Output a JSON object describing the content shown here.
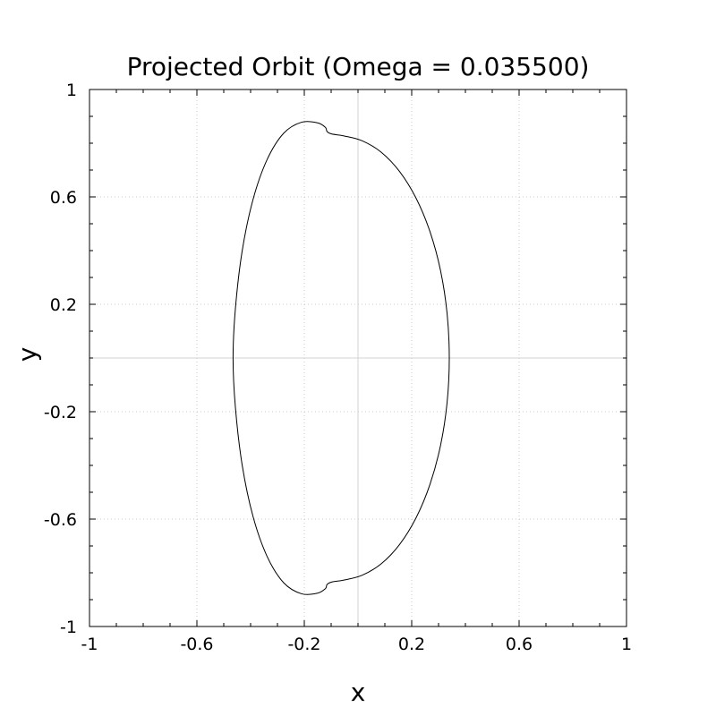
{
  "chart_data": {
    "type": "line",
    "title": "Projected Orbit (Omega = 0.035500)",
    "xlabel": "x",
    "ylabel": "y",
    "xlim": [
      -1,
      1
    ],
    "ylim": [
      -1,
      1
    ],
    "xticks": [
      -1,
      -0.6,
      -0.2,
      0.2,
      0.6,
      1
    ],
    "yticks": [
      -1,
      -0.6,
      -0.2,
      0.2,
      0.6,
      1
    ],
    "xtick_labels": [
      "-1",
      "-0.6",
      "-0.2",
      "0.2",
      "0.6",
      "1"
    ],
    "ytick_labels": [
      "-1",
      "-0.6",
      "-0.2",
      "0.2",
      "0.6",
      "1"
    ],
    "minor_tick_step": 0.1,
    "grid": true,
    "grid_style": "dotted",
    "zero_lines": true,
    "line_color": "#000000",
    "series": [
      {
        "values_description_only": false,
        "x": [
          0.34,
          0.3318,
          0.3076,
          0.2685,
          0.2168,
          0.155,
          0.0866,
          0.0156,
          -0.0508,
          -0.0986,
          -0.1154,
          -0.1215,
          -0.1508,
          -0.2102,
          -0.2768,
          -0.3384,
          -0.391,
          -0.4313,
          -0.4566,
          -0.4653,
          -0.4566,
          -0.4313,
          -0.391,
          -0.3384,
          -0.2768,
          -0.2102,
          -0.1508,
          -0.1215,
          -0.1154,
          -0.0986,
          -0.0508,
          0.0156,
          0.0866,
          0.155,
          0.2168,
          0.2685,
          0.3076,
          0.3318,
          0.34
        ],
        "y": [
          0,
          0.166,
          0.3247,
          0.4693,
          0.5941,
          0.6943,
          0.7663,
          0.8089,
          0.8268,
          0.8345,
          0.8438,
          0.8591,
          0.8758,
          0.8781,
          0.8371,
          0.7393,
          0.5901,
          0.3992,
          0.1839,
          0,
          -0.1839,
          -0.3992,
          -0.5901,
          -0.7393,
          -0.8371,
          -0.8781,
          -0.8758,
          -0.8591,
          -0.8438,
          -0.8345,
          -0.8268,
          -0.8089,
          -0.7663,
          -0.6943,
          -0.5941,
          -0.4693,
          -0.3247,
          -0.166,
          0
        ]
      }
    ]
  }
}
